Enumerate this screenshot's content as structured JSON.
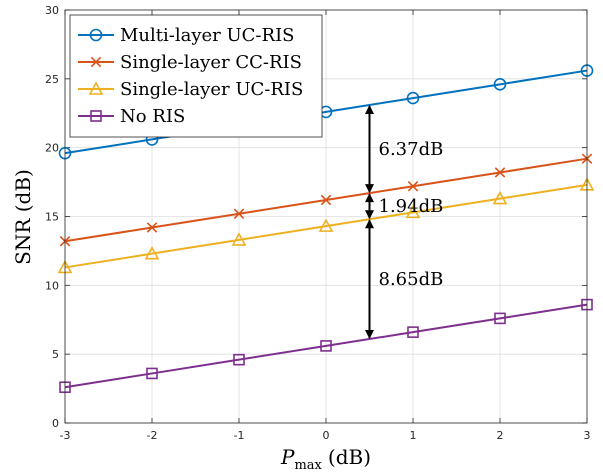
{
  "chart_data": {
    "type": "line",
    "xlabel_main": "P",
    "xlabel_sub": "max",
    "xlabel_unit": "(dB)",
    "ylabel": "SNR (dB)",
    "x": [
      -3,
      -2,
      -1,
      0,
      1,
      2,
      3
    ],
    "xlim": [
      -3,
      3
    ],
    "ylim": [
      0,
      30
    ],
    "xticks": [
      "-3",
      "-2",
      "-1",
      "0",
      "1",
      "2",
      "3"
    ],
    "yticks": [
      "0",
      "5",
      "10",
      "15",
      "20",
      "25",
      "30"
    ],
    "grid": true,
    "legend_position": "top-left",
    "series": [
      {
        "name": "Multi-layer UC-RIS",
        "color": "#0072BD",
        "marker": "circle",
        "values": [
          19.6,
          20.6,
          21.6,
          22.6,
          23.6,
          24.6,
          25.6
        ]
      },
      {
        "name": "Single-layer CC-RIS",
        "color": "#D95319",
        "marker": "x",
        "values": [
          13.2,
          14.2,
          15.2,
          16.2,
          17.2,
          18.2,
          19.2
        ]
      },
      {
        "name": "Single-layer UC-RIS",
        "color": "#EDB120",
        "marker": "triangle",
        "values": [
          11.3,
          12.3,
          13.3,
          14.3,
          15.3,
          16.3,
          17.3
        ]
      },
      {
        "name": "No RIS",
        "color": "#7E2F8E",
        "marker": "square",
        "values": [
          2.6,
          3.6,
          4.6,
          5.6,
          6.6,
          7.6,
          8.6
        ]
      }
    ],
    "annotations": [
      {
        "label": "6.37dB",
        "x": 0.5,
        "y_from": 16.7,
        "y_to": 23.1
      },
      {
        "label": "1.94dB",
        "x": 0.5,
        "y_from": 14.8,
        "y_to": 16.7
      },
      {
        "label": "8.65dB",
        "x": 0.5,
        "y_from": 6.1,
        "y_to": 14.8
      }
    ]
  }
}
